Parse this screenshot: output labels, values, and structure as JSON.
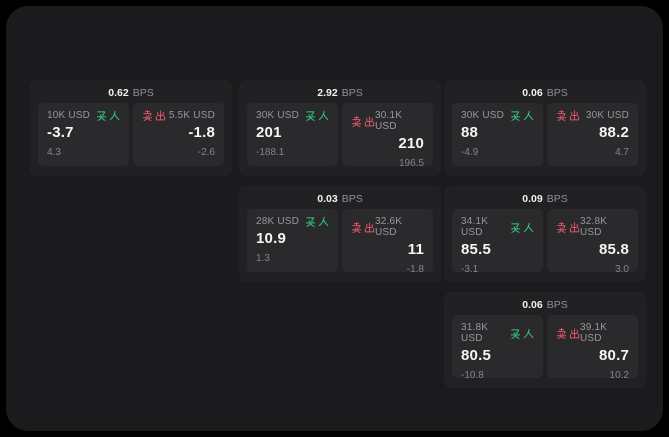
{
  "colors": {
    "buy_green": "#36c97d",
    "sell_red": "#dd5668",
    "window_bg": "#1b1b1d",
    "card_bg": "#212123",
    "panel_bg": "#2a2a2c"
  },
  "cards": [
    {
      "row": 0,
      "col": 0,
      "bps_value": "0.62",
      "bps_unit": "BPS",
      "buy": {
        "label": "买入",
        "amount": "10K USD",
        "value": "-3.7",
        "sub": "4.3"
      },
      "sell": {
        "label": "卖出",
        "amount": "5.5K USD",
        "value": "-1.8",
        "sub": "-2.6"
      }
    },
    {
      "row": 0,
      "col": 1,
      "bps_value": "2.92",
      "bps_unit": "BPS",
      "buy": {
        "label": "买入",
        "amount": "30K USD",
        "value": "201",
        "sub": "-188.1"
      },
      "sell": {
        "label": "卖出",
        "amount": "30.1K USD",
        "value": "210",
        "sub": "196.5"
      }
    },
    {
      "row": 0,
      "col": 2,
      "bps_value": "0.06",
      "bps_unit": "BPS",
      "buy": {
        "label": "买入",
        "amount": "30K USD",
        "value": "88",
        "sub": "-4.9"
      },
      "sell": {
        "label": "卖出",
        "amount": "30K USD",
        "value": "88.2",
        "sub": "4.7"
      }
    },
    {
      "row": 1,
      "col": 1,
      "bps_value": "0.03",
      "bps_unit": "BPS",
      "buy": {
        "label": "买入",
        "amount": "28K USD",
        "value": "10.9",
        "sub": "1.3"
      },
      "sell": {
        "label": "卖出",
        "amount": "32.6K USD",
        "value": "11",
        "sub": "-1.8"
      }
    },
    {
      "row": 1,
      "col": 2,
      "bps_value": "0.09",
      "bps_unit": "BPS",
      "buy": {
        "label": "买入",
        "amount": "34.1K USD",
        "value": "85.5",
        "sub": "-3.1"
      },
      "sell": {
        "label": "卖出",
        "amount": "32.8K USD",
        "value": "85.8",
        "sub": "3.0"
      }
    },
    {
      "row": 2,
      "col": 2,
      "bps_value": "0.06",
      "bps_unit": "BPS",
      "buy": {
        "label": "买入",
        "amount": "31.8K USD",
        "value": "80.5",
        "sub": "-10.8"
      },
      "sell": {
        "label": "卖出",
        "amount": "39.1K USD",
        "value": "80.7",
        "sub": "10.2"
      }
    }
  ]
}
